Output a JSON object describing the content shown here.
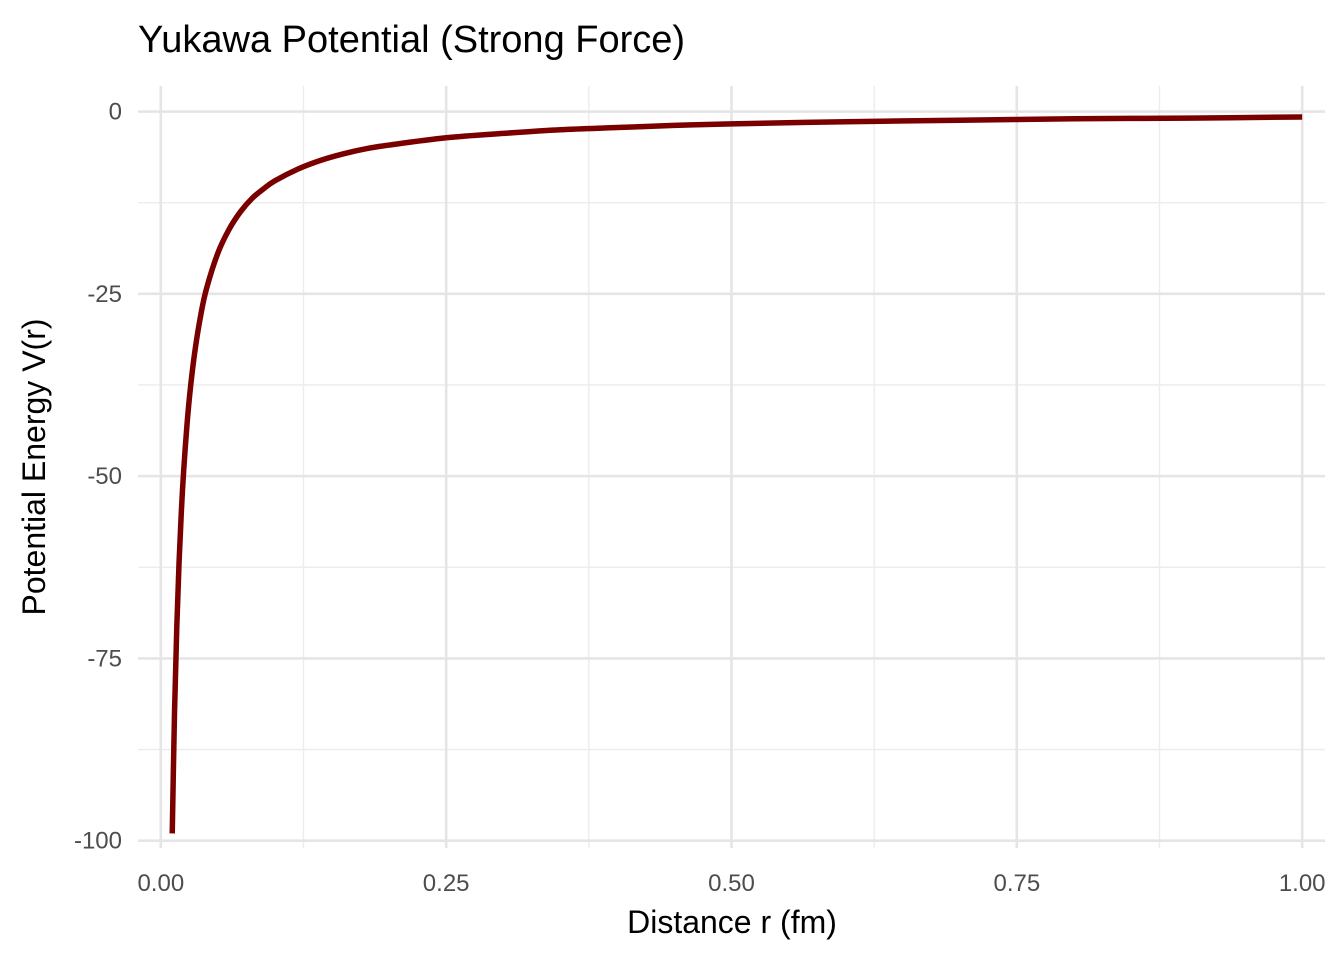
{
  "chart_data": {
    "type": "line",
    "title": "Yukawa Potential (Strong Force)",
    "xlabel": "Distance r (fm)",
    "ylabel": "Potential Energy V(r)",
    "xlim": [
      -0.02,
      1.02
    ],
    "ylim": [
      -101,
      3.5
    ],
    "x_ticks": [
      0.0,
      0.25,
      0.5,
      0.75,
      1.0
    ],
    "x_tick_labels": [
      "0.00",
      "0.25",
      "0.50",
      "0.75",
      "1.00"
    ],
    "y_ticks": [
      -100,
      -75,
      -50,
      -25,
      0
    ],
    "y_tick_labels": [
      "-100",
      "-75",
      "-50",
      "-25",
      "0"
    ],
    "grid": true,
    "legend": "none",
    "series": [
      {
        "color": "#7a0000",
        "x": [
          0.01,
          0.012,
          0.014,
          0.016,
          0.018,
          0.02,
          0.023,
          0.026,
          0.03,
          0.035,
          0.04,
          0.05,
          0.06,
          0.07,
          0.08,
          0.09,
          0.1,
          0.12,
          0.14,
          0.16,
          0.18,
          0.2,
          0.25,
          0.3,
          0.35,
          0.4,
          0.45,
          0.5,
          0.6,
          0.7,
          0.8,
          0.9,
          1.0
        ],
        "y": [
          -99.0,
          -82.4,
          -70.6,
          -61.7,
          -54.8,
          -49.3,
          -42.8,
          -37.8,
          -32.7,
          -27.9,
          -24.3,
          -19.4,
          -16.1,
          -13.7,
          -11.9,
          -10.6,
          -9.5,
          -7.9,
          -6.7,
          -5.8,
          -5.1,
          -4.6,
          -3.6,
          -3.0,
          -2.5,
          -2.2,
          -1.9,
          -1.7,
          -1.4,
          -1.2,
          -1.0,
          -0.9,
          -0.75
        ]
      }
    ]
  }
}
